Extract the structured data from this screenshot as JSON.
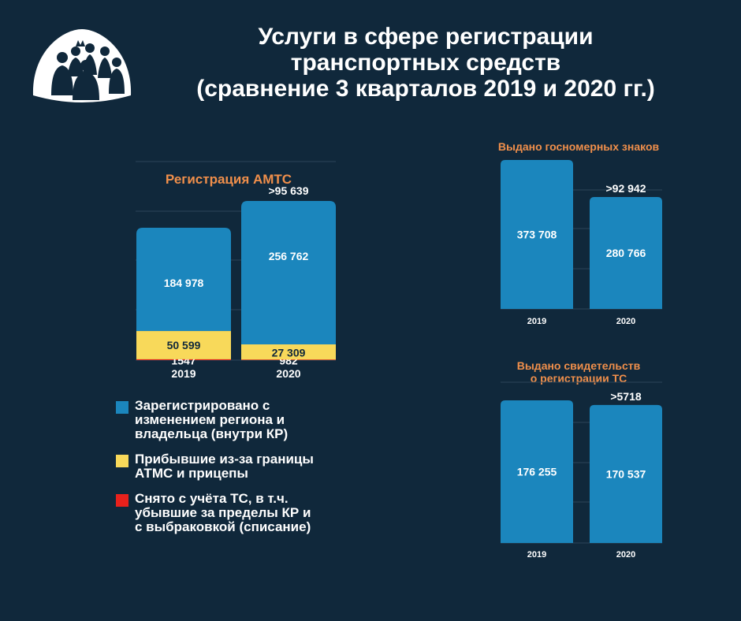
{
  "header": {
    "title_lines": [
      "Услуги в сфере регистрации",
      "транспортных средств",
      "(сравнение 3 кварталов 2019 и 2020 гг.)"
    ]
  },
  "colors": {
    "background": "#10283b",
    "blue": "#1b86bd",
    "yellow": "#f8d95a",
    "red": "#e8211c",
    "accent": "#f08f4b"
  },
  "logo": {
    "icon": "people-group-icon"
  },
  "legend": {
    "items": [
      {
        "label": "Зарегистрировано с\nизменением региона и\nвладельца (внутри КР)",
        "color": "#1b86bd"
      },
      {
        "label": "Прибывшие из-за границы\nАТМС и прицепы",
        "color": "#f8d95a"
      },
      {
        "label": "Снято с учёта ТС, в т.ч.\nубывшие за пределы КР и\nс выбраковкой (списание)",
        "color": "#e8211c"
      }
    ]
  },
  "chart_data": [
    {
      "type": "bar",
      "stacked": true,
      "title": "Регистрация АМТС",
      "categories": [
        "2019",
        "2020"
      ],
      "series": [
        {
          "values": [
            1547,
            982
          ],
          "labels": [
            "1547",
            "982"
          ],
          "color": "#e8211c"
        },
        {
          "values": [
            50599,
            27309
          ],
          "labels": [
            "50 599",
            "27 309"
          ],
          "color": "#f8d95a"
        },
        {
          "values": [
            184978,
            256762
          ],
          "labels": [
            "184 978",
            "256 762"
          ],
          "color": "#1b86bd"
        }
      ],
      "annotations": [
        {
          "category": "2020",
          "text": ">95 639"
        }
      ],
      "grid": true,
      "ylim": [
        0,
        300000
      ]
    },
    {
      "type": "bar",
      "title": "Выдано госномерных знаков",
      "categories": [
        "2019",
        "2020"
      ],
      "values": [
        373708,
        280766
      ],
      "labels": [
        "373 708",
        "280 766"
      ],
      "color": "#1b86bd",
      "annotations": [
        {
          "category": "2020",
          "text": ">92 942"
        }
      ],
      "grid": true,
      "ylim": [
        0,
        400000
      ]
    },
    {
      "type": "bar",
      "title": "Выдано свидетельств\nо регистрации ТС",
      "categories": [
        "2019",
        "2020"
      ],
      "values": [
        176255,
        170537
      ],
      "labels": [
        "176 255",
        "170 537"
      ],
      "color": "#1b86bd",
      "annotations": [
        {
          "category": "2020",
          "text": ">5718"
        }
      ],
      "grid": true,
      "ylim": [
        0,
        190000
      ]
    }
  ]
}
